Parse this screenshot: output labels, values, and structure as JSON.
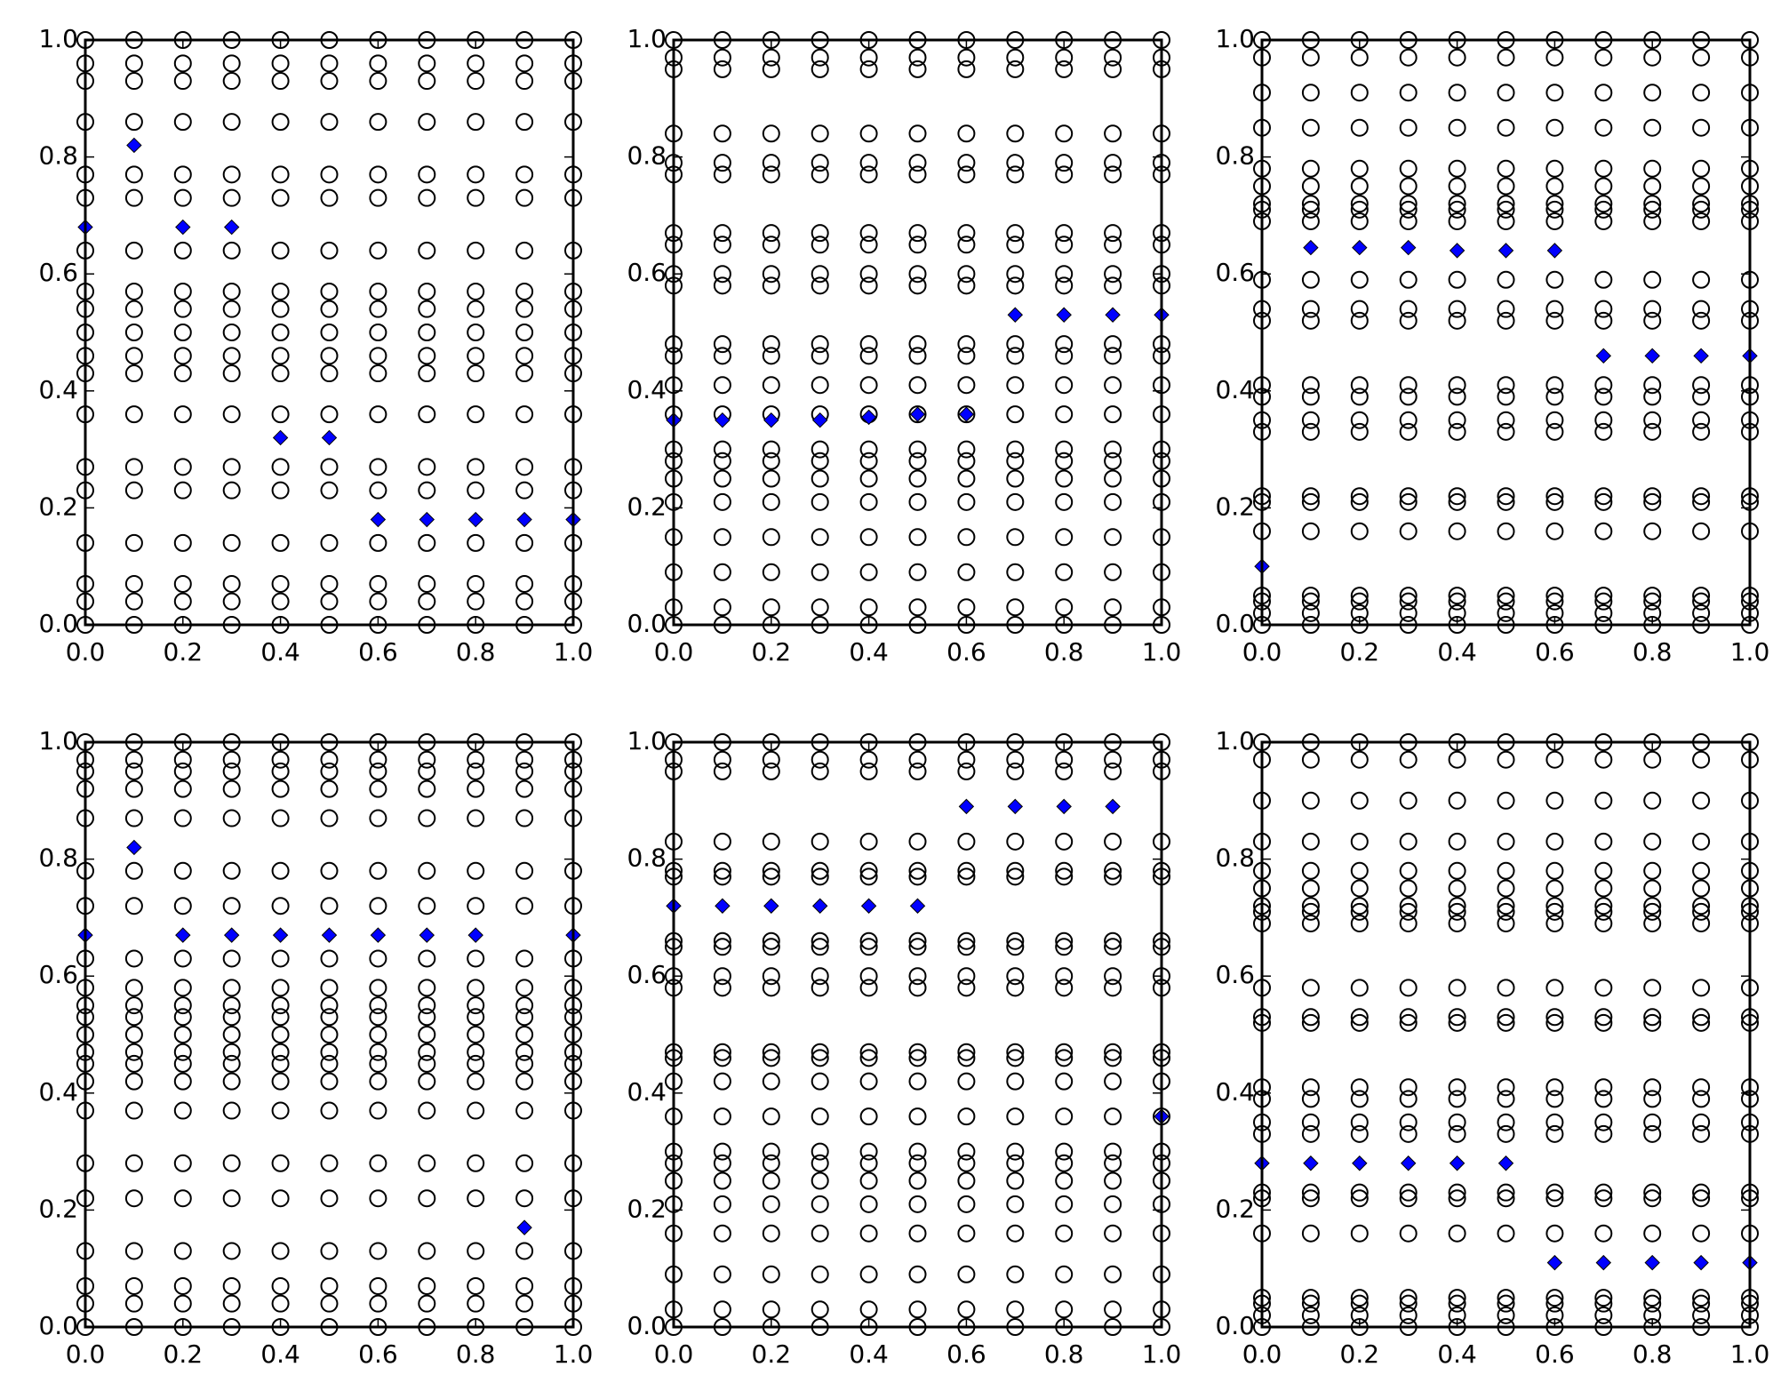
{
  "chart_data": [
    {
      "type": "scatter",
      "xlim": [
        0,
        1
      ],
      "ylim": [
        0,
        1
      ],
      "xticks": [
        {
          "value": 0,
          "label": "0.0"
        },
        {
          "value": 0.2,
          "label": "0.2"
        },
        {
          "value": 0.4,
          "label": "0.4"
        },
        {
          "value": 0.6,
          "label": "0.6"
        },
        {
          "value": 0.8,
          "label": "0.8"
        },
        {
          "value": 1,
          "label": "1.0"
        }
      ],
      "yticks": [
        {
          "value": 0,
          "label": "0.0"
        },
        {
          "value": 0.2,
          "label": "0.2"
        },
        {
          "value": 0.4,
          "label": "0.4"
        },
        {
          "value": 0.6,
          "label": "0.6"
        },
        {
          "value": 0.8,
          "label": "0.8"
        },
        {
          "value": 1,
          "label": "1.0"
        }
      ],
      "circles": {
        "marker": "circle",
        "edgecolor": "#000000",
        "x": [
          0,
          0.1,
          0.2,
          0.3,
          0.4,
          0.5,
          0.6,
          0.7,
          0.8,
          0.9,
          1
        ],
        "levels": [
          0,
          0.04,
          0.07,
          0.14,
          0.23,
          0.27,
          0.36,
          0.43,
          0.46,
          0.5,
          0.54,
          0.57,
          0.64,
          0.73,
          0.77,
          0.86,
          0.93,
          0.96,
          1
        ]
      },
      "series": [
        {
          "marker": "diamond",
          "color": "#0000ff",
          "x": [
            0,
            0.1,
            0.2,
            0.3,
            0.4,
            0.5,
            0.6,
            0.7,
            0.8,
            0.9,
            1
          ],
          "values": [
            0.68,
            0.82,
            0.68,
            0.68,
            0.32,
            0.32,
            0.18,
            0.18,
            0.18,
            0.18,
            0.18
          ]
        }
      ]
    },
    {
      "type": "scatter",
      "xlim": [
        0,
        1
      ],
      "ylim": [
        0,
        1
      ],
      "xticks": [
        {
          "value": 0,
          "label": "0.0"
        },
        {
          "value": 0.2,
          "label": "0.2"
        },
        {
          "value": 0.4,
          "label": "0.4"
        },
        {
          "value": 0.6,
          "label": "0.6"
        },
        {
          "value": 0.8,
          "label": "0.8"
        },
        {
          "value": 1,
          "label": "1.0"
        }
      ],
      "yticks": [
        {
          "value": 0,
          "label": "0.0"
        },
        {
          "value": 0.2,
          "label": "0.2"
        },
        {
          "value": 0.4,
          "label": "0.4"
        },
        {
          "value": 0.6,
          "label": "0.6"
        },
        {
          "value": 0.8,
          "label": "0.8"
        },
        {
          "value": 1,
          "label": "1.0"
        }
      ],
      "circles": {
        "marker": "circle",
        "edgecolor": "#000000",
        "x": [
          0,
          0.1,
          0.2,
          0.3,
          0.4,
          0.5,
          0.6,
          0.7,
          0.8,
          0.9,
          1
        ],
        "levels": [
          0,
          0.03,
          0.09,
          0.15,
          0.21,
          0.25,
          0.28,
          0.3,
          0.36,
          0.41,
          0.46,
          0.48,
          0.58,
          0.6,
          0.65,
          0.67,
          0.77,
          0.79,
          0.84,
          0.95,
          0.97,
          1
        ]
      },
      "series": [
        {
          "marker": "diamond",
          "color": "#0000ff",
          "x": [
            0,
            0.1,
            0.2,
            0.3,
            0.4,
            0.5,
            0.6,
            0.7,
            0.8,
            0.9,
            1
          ],
          "values": [
            0.35,
            0.35,
            0.35,
            0.35,
            0.355,
            0.36,
            0.36,
            0.53,
            0.53,
            0.53,
            0.53
          ]
        }
      ]
    },
    {
      "type": "scatter",
      "xlim": [
        0,
        1
      ],
      "ylim": [
        0,
        1
      ],
      "xticks": [
        {
          "value": 0,
          "label": "0.0"
        },
        {
          "value": 0.2,
          "label": "0.2"
        },
        {
          "value": 0.4,
          "label": "0.4"
        },
        {
          "value": 0.6,
          "label": "0.6"
        },
        {
          "value": 0.8,
          "label": "0.8"
        },
        {
          "value": 1,
          "label": "1.0"
        }
      ],
      "yticks": [
        {
          "value": 0,
          "label": "0.0"
        },
        {
          "value": 0.2,
          "label": "0.2"
        },
        {
          "value": 0.4,
          "label": "0.4"
        },
        {
          "value": 0.6,
          "label": "0.6"
        },
        {
          "value": 0.8,
          "label": "0.8"
        },
        {
          "value": 1,
          "label": "1.0"
        }
      ],
      "circles": {
        "marker": "circle",
        "edgecolor": "#000000",
        "x": [
          0,
          0.1,
          0.2,
          0.3,
          0.4,
          0.5,
          0.6,
          0.7,
          0.8,
          0.9,
          1
        ],
        "levels": [
          0,
          0.02,
          0.04,
          0.05,
          0.16,
          0.21,
          0.22,
          0.33,
          0.35,
          0.39,
          0.41,
          0.52,
          0.54,
          0.59,
          0.69,
          0.71,
          0.72,
          0.75,
          0.78,
          0.85,
          0.91,
          0.97,
          1
        ]
      },
      "series": [
        {
          "marker": "diamond",
          "color": "#0000ff",
          "x": [
            0,
            0.1,
            0.2,
            0.3,
            0.4,
            0.5,
            0.6,
            0.7,
            0.8,
            0.9,
            1
          ],
          "values": [
            0.1,
            0.645,
            0.645,
            0.645,
            0.64,
            0.64,
            0.64,
            0.46,
            0.46,
            0.46,
            0.46
          ]
        }
      ]
    },
    {
      "type": "scatter",
      "xlim": [
        0,
        1
      ],
      "ylim": [
        0,
        1
      ],
      "xticks": [
        {
          "value": 0,
          "label": "0.0"
        },
        {
          "value": 0.2,
          "label": "0.2"
        },
        {
          "value": 0.4,
          "label": "0.4"
        },
        {
          "value": 0.6,
          "label": "0.6"
        },
        {
          "value": 0.8,
          "label": "0.8"
        },
        {
          "value": 1,
          "label": "1.0"
        }
      ],
      "yticks": [
        {
          "value": 0,
          "label": "0.0"
        },
        {
          "value": 0.2,
          "label": "0.2"
        },
        {
          "value": 0.4,
          "label": "0.4"
        },
        {
          "value": 0.6,
          "label": "0.6"
        },
        {
          "value": 0.8,
          "label": "0.8"
        },
        {
          "value": 1,
          "label": "1.0"
        }
      ],
      "circles": {
        "marker": "circle",
        "edgecolor": "#000000",
        "x": [
          0,
          0.1,
          0.2,
          0.3,
          0.4,
          0.5,
          0.6,
          0.7,
          0.8,
          0.9,
          1
        ],
        "levels": [
          0,
          0.04,
          0.07,
          0.13,
          0.22,
          0.28,
          0.37,
          0.42,
          0.45,
          0.47,
          0.5,
          0.53,
          0.55,
          0.58,
          0.63,
          0.72,
          0.78,
          0.87,
          0.92,
          0.95,
          0.97,
          1
        ]
      },
      "series": [
        {
          "marker": "diamond",
          "color": "#0000ff",
          "x": [
            0,
            0.1,
            0.2,
            0.3,
            0.4,
            0.5,
            0.6,
            0.7,
            0.8,
            0.9,
            1
          ],
          "values": [
            0.67,
            0.82,
            0.67,
            0.67,
            0.67,
            0.67,
            0.67,
            0.67,
            0.67,
            0.17,
            0.67
          ]
        }
      ]
    },
    {
      "type": "scatter",
      "xlim": [
        0,
        1
      ],
      "ylim": [
        0,
        1
      ],
      "xticks": [
        {
          "value": 0,
          "label": "0.0"
        },
        {
          "value": 0.2,
          "label": "0.2"
        },
        {
          "value": 0.4,
          "label": "0.4"
        },
        {
          "value": 0.6,
          "label": "0.6"
        },
        {
          "value": 0.8,
          "label": "0.8"
        },
        {
          "value": 1,
          "label": "1.0"
        }
      ],
      "yticks": [
        {
          "value": 0,
          "label": "0.0"
        },
        {
          "value": 0.2,
          "label": "0.2"
        },
        {
          "value": 0.4,
          "label": "0.4"
        },
        {
          "value": 0.6,
          "label": "0.6"
        },
        {
          "value": 0.8,
          "label": "0.8"
        },
        {
          "value": 1,
          "label": "1.0"
        }
      ],
      "circles": {
        "marker": "circle",
        "edgecolor": "#000000",
        "x": [
          0,
          0.1,
          0.2,
          0.3,
          0.4,
          0.5,
          0.6,
          0.7,
          0.8,
          0.9,
          1
        ],
        "levels": [
          0,
          0.03,
          0.09,
          0.16,
          0.21,
          0.25,
          0.28,
          0.3,
          0.36,
          0.42,
          0.46,
          0.47,
          0.58,
          0.6,
          0.65,
          0.66,
          0.77,
          0.78,
          0.83,
          0.95,
          0.97,
          1
        ]
      },
      "series": [
        {
          "marker": "diamond",
          "color": "#0000ff",
          "x": [
            0,
            0.1,
            0.2,
            0.3,
            0.4,
            0.5,
            0.6,
            0.7,
            0.8,
            0.9,
            1
          ],
          "values": [
            0.72,
            0.72,
            0.72,
            0.72,
            0.72,
            0.72,
            0.89,
            0.89,
            0.89,
            0.89,
            0.36
          ]
        }
      ]
    },
    {
      "type": "scatter",
      "xlim": [
        0,
        1
      ],
      "ylim": [
        0,
        1
      ],
      "xticks": [
        {
          "value": 0,
          "label": "0.0"
        },
        {
          "value": 0.2,
          "label": "0.2"
        },
        {
          "value": 0.4,
          "label": "0.4"
        },
        {
          "value": 0.6,
          "label": "0.6"
        },
        {
          "value": 0.8,
          "label": "0.8"
        },
        {
          "value": 1,
          "label": "1.0"
        }
      ],
      "yticks": [
        {
          "value": 0,
          "label": "0.0"
        },
        {
          "value": 0.2,
          "label": "0.2"
        },
        {
          "value": 0.4,
          "label": "0.4"
        },
        {
          "value": 0.6,
          "label": "0.6"
        },
        {
          "value": 0.8,
          "label": "0.8"
        },
        {
          "value": 1,
          "label": "1.0"
        }
      ],
      "circles": {
        "marker": "circle",
        "edgecolor": "#000000",
        "x": [
          0,
          0.1,
          0.2,
          0.3,
          0.4,
          0.5,
          0.6,
          0.7,
          0.8,
          0.9,
          1
        ],
        "levels": [
          0,
          0.02,
          0.04,
          0.05,
          0.16,
          0.22,
          0.23,
          0.33,
          0.35,
          0.39,
          0.41,
          0.52,
          0.53,
          0.58,
          0.69,
          0.71,
          0.72,
          0.75,
          0.78,
          0.83,
          0.9,
          0.97,
          1
        ]
      },
      "series": [
        {
          "marker": "diamond",
          "color": "#0000ff",
          "x": [
            0,
            0.1,
            0.2,
            0.3,
            0.4,
            0.5,
            0.6,
            0.7,
            0.8,
            0.9,
            1
          ],
          "values": [
            0.28,
            0.28,
            0.28,
            0.28,
            0.28,
            0.28,
            0.11,
            0.11,
            0.11,
            0.11,
            0.11
          ]
        }
      ]
    }
  ]
}
